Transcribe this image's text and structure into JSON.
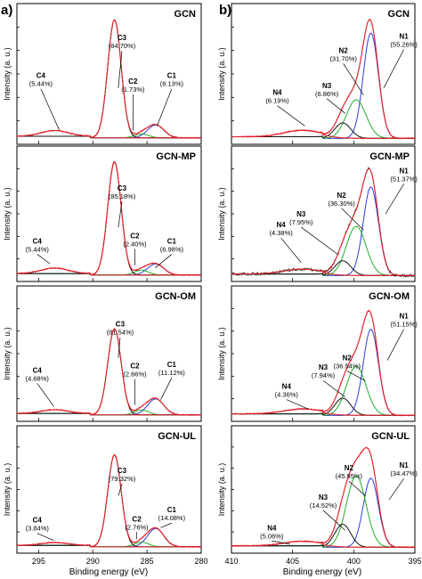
{
  "figure": {
    "panel_a_label": "a)",
    "panel_b_label": "b)",
    "ylabel": "Intensity (a. u.)",
    "xlabel": "Binding energy (eV)"
  },
  "colors": {
    "measured": "#e0202a",
    "fit_envelope": "#e0202a",
    "c1_n1": "#2b3fd6",
    "c2_n2": "#1fae2a",
    "c3_n3": "#111111",
    "c4_n4": "#e0202a",
    "baseline": "#a0522d",
    "frame": "#000000"
  },
  "chart_data": [
    {
      "type": "line",
      "panel": "a",
      "xlabel": "Binding energy (eV)",
      "ylabel": "Intensity (a. u.)",
      "xlim": [
        297,
        280
      ],
      "xticks": [
        "295",
        "290",
        "285",
        "280"
      ],
      "xaxis_reversed": true,
      "samples": [
        {
          "name": "GCN",
          "peaks": [
            {
              "label": "C1",
              "percent": "8.13%",
              "center": 284.2
            },
            {
              "label": "C2",
              "percent": "1.73%",
              "center": 285.5
            },
            {
              "label": "C3",
              "percent": "84.70%",
              "center": 288.0
            },
            {
              "label": "C4",
              "percent": "5.44%",
              "center": 293.5
            }
          ]
        },
        {
          "name": "GCN-MP",
          "peaks": [
            {
              "label": "C1",
              "percent": "6.98%",
              "center": 284.2
            },
            {
              "label": "C2",
              "percent": "2.40%",
              "center": 285.5
            },
            {
              "label": "C3",
              "percent": "85.18%",
              "center": 288.0
            },
            {
              "label": "C4",
              "percent": "5.44%",
              "center": 293.5
            }
          ]
        },
        {
          "name": "GCN-OM",
          "peaks": [
            {
              "label": "C1",
              "percent": "11.12%",
              "center": 284.2
            },
            {
              "label": "C2",
              "percent": "2.66%",
              "center": 285.5
            },
            {
              "label": "C3",
              "percent": "81.54%",
              "center": 288.0
            },
            {
              "label": "C4",
              "percent": "4.68%",
              "center": 293.5
            }
          ]
        },
        {
          "name": "GCN-UL",
          "peaks": [
            {
              "label": "C1",
              "percent": "14.08%",
              "center": 284.2
            },
            {
              "label": "C2",
              "percent": "2.76%",
              "center": 285.5
            },
            {
              "label": "C3",
              "percent": "79.32%",
              "center": 288.0
            },
            {
              "label": "C4",
              "percent": "3.84%",
              "center": 293.5
            }
          ]
        }
      ]
    },
    {
      "type": "line",
      "panel": "b",
      "xlabel": "Binding energy (eV)",
      "ylabel": "Intensity (a. u.)",
      "xlim": [
        410,
        395
      ],
      "xticks": [
        "410",
        "405",
        "400",
        "395"
      ],
      "xaxis_reversed": true,
      "samples": [
        {
          "name": "GCN",
          "peaks": [
            {
              "label": "N1",
              "percent": "55.26%",
              "center": 398.6
            },
            {
              "label": "N2",
              "percent": "31.70%",
              "center": 399.8
            },
            {
              "label": "N3",
              "percent": "6.86%",
              "center": 400.9
            },
            {
              "label": "N4",
              "percent": "6.19%",
              "center": 404.2
            }
          ]
        },
        {
          "name": "GCN-MP",
          "peaks": [
            {
              "label": "N1",
              "percent": "51.37%",
              "center": 398.6
            },
            {
              "label": "N2",
              "percent": "36.30%",
              "center": 399.8
            },
            {
              "label": "N3",
              "percent": "7.95%",
              "center": 400.9
            },
            {
              "label": "N4",
              "percent": "4.38%",
              "center": 404.2
            }
          ]
        },
        {
          "name": "GCN-OM",
          "peaks": [
            {
              "label": "N1",
              "percent": "51.15%",
              "center": 398.6
            },
            {
              "label": "N2",
              "percent": "36.54%",
              "center": 399.8
            },
            {
              "label": "N3",
              "percent": "7.94%",
              "center": 400.9
            },
            {
              "label": "N4",
              "percent": "4.36%",
              "center": 404.2
            }
          ]
        },
        {
          "name": "GCN-UL",
          "peaks": [
            {
              "label": "N1",
              "percent": "34.47%",
              "center": 398.6
            },
            {
              "label": "N2",
              "percent": "45.95%",
              "center": 399.8
            },
            {
              "label": "N3",
              "percent": "14.52%",
              "center": 400.9
            },
            {
              "label": "N4",
              "percent": "5.06%",
              "center": 404.2
            }
          ]
        }
      ]
    }
  ]
}
